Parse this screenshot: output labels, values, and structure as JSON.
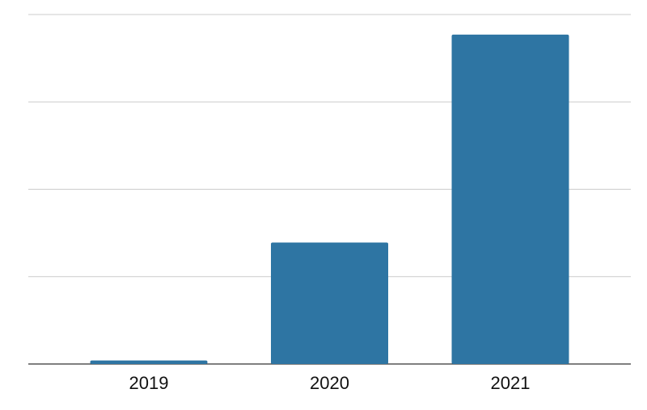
{
  "chart_data": {
    "type": "bar",
    "categories": [
      "2019",
      "2020",
      "2021"
    ],
    "values": [
      0.04,
      1.39,
      3.77
    ],
    "color": "#2e75a3",
    "ylim": [
      0,
      4
    ],
    "yticks": [
      0,
      1,
      2,
      3,
      4
    ],
    "grid": true
  }
}
